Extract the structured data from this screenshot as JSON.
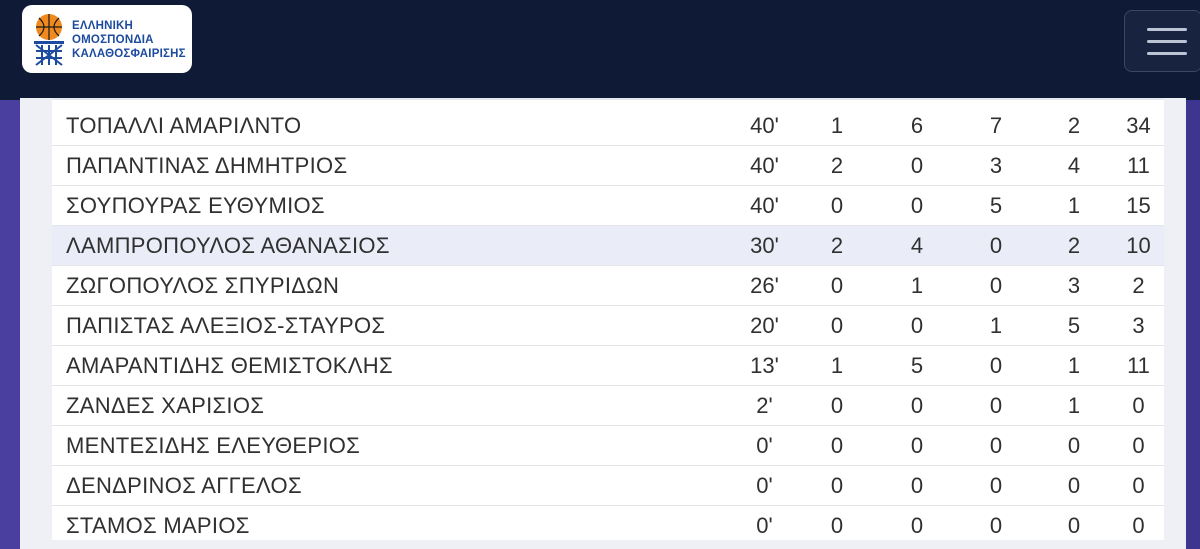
{
  "header": {
    "logo_lines": [
      "ΕΛΛΗΝΙΚΗ",
      "ΟΜΟΣΠΟΝΔΙΑ",
      "ΚΑΛΑΘΟΣΦΑΙΡΙΣΗΣ"
    ],
    "menu_icon": "hamburger-menu-icon"
  },
  "colors": {
    "header_bg": "#0f1b36",
    "brand_blue": "#1d4ba0",
    "ball_orange": "#f08a1e",
    "side_purple": "#4a3f9e",
    "highlight_row": "#eaedf8"
  },
  "players": [
    {
      "name": "ΤΟΠΑΛΛΙ ΑΜΑΡΙΛΝΤΟ",
      "min": "40'",
      "c1": "1",
      "c2": "6",
      "c3": "7",
      "c4": "2",
      "pts": "34"
    },
    {
      "name": "ΠΑΠΑΝΤΙΝΑΣ ΔΗΜΗΤΡΙΟΣ",
      "min": "40'",
      "c1": "2",
      "c2": "0",
      "c3": "3",
      "c4": "4",
      "pts": "11"
    },
    {
      "name": "ΣΟΥΠΟΥΡΑΣ ΕΥΘΥΜΙΟΣ",
      "min": "40'",
      "c1": "0",
      "c2": "0",
      "c3": "5",
      "c4": "1",
      "pts": "15"
    },
    {
      "name": "ΛΑΜΠΡΟΠΟΥΛΟΣ ΑΘΑΝΑΣΙΟΣ",
      "min": "30'",
      "c1": "2",
      "c2": "4",
      "c3": "0",
      "c4": "2",
      "pts": "10",
      "highlighted": true
    },
    {
      "name": "ΖΩΓΟΠΟΥΛΟΣ ΣΠΥΡΙΔΩΝ",
      "min": "26'",
      "c1": "0",
      "c2": "1",
      "c3": "0",
      "c4": "3",
      "pts": "2"
    },
    {
      "name": "ΠΑΠΙΣΤΑΣ ΑΛΕΞΙΟΣ-ΣΤΑΥΡΟΣ",
      "min": "20'",
      "c1": "0",
      "c2": "0",
      "c3": "1",
      "c4": "5",
      "pts": "3"
    },
    {
      "name": "ΑΜΑΡΑΝΤΙΔΗΣ ΘΕΜΙΣΤΟΚΛΗΣ",
      "min": "13'",
      "c1": "1",
      "c2": "5",
      "c3": "0",
      "c4": "1",
      "pts": "11"
    },
    {
      "name": "ΖΑΝΔΕΣ ΧΑΡΙΣΙΟΣ",
      "min": "2'",
      "c1": "0",
      "c2": "0",
      "c3": "0",
      "c4": "1",
      "pts": "0"
    },
    {
      "name": "ΜΕΝΤΕΣΙΔΗΣ ΕΛΕΥΘΕΡΙΟΣ",
      "min": "0'",
      "c1": "0",
      "c2": "0",
      "c3": "0",
      "c4": "0",
      "pts": "0"
    },
    {
      "name": "ΔΕΝΔΡΙΝΟΣ ΑΓΓΕΛΟΣ",
      "min": "0'",
      "c1": "0",
      "c2": "0",
      "c3": "0",
      "c4": "0",
      "pts": "0"
    },
    {
      "name": "ΣΤΑΜΟΣ ΜΑΡΙΟΣ",
      "min": "0'",
      "c1": "0",
      "c2": "0",
      "c3": "0",
      "c4": "0",
      "pts": "0"
    }
  ]
}
